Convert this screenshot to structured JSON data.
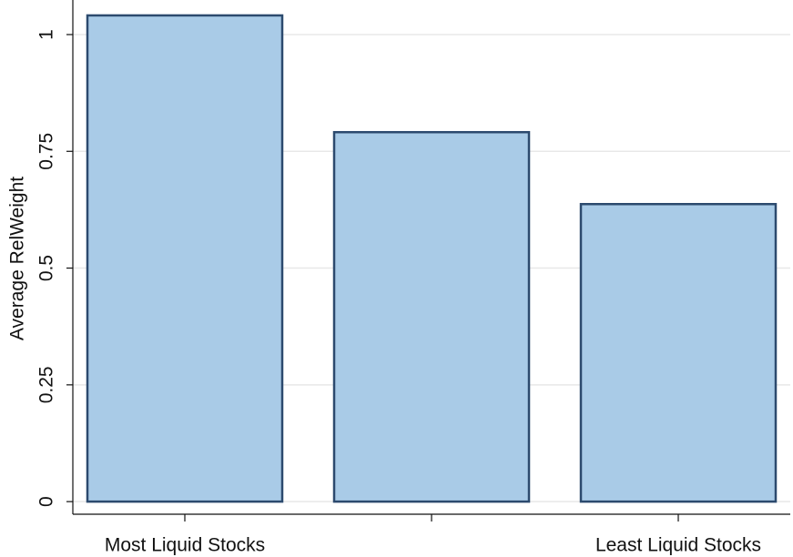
{
  "chart_data": {
    "type": "bar",
    "y_label": "Average RelWeight",
    "categories": [
      "Most Liquid Stocks",
      null,
      "Least Liquid Stocks"
    ],
    "values": [
      1.041,
      0.791,
      0.637
    ],
    "color": "#a9cbe7",
    "edge_color": "#2c4a6e",
    "ylim": [
      -0.027,
      1.074
    ],
    "yticks": [
      0,
      0.25,
      0.5,
      0.75,
      1
    ],
    "grid": true
  }
}
